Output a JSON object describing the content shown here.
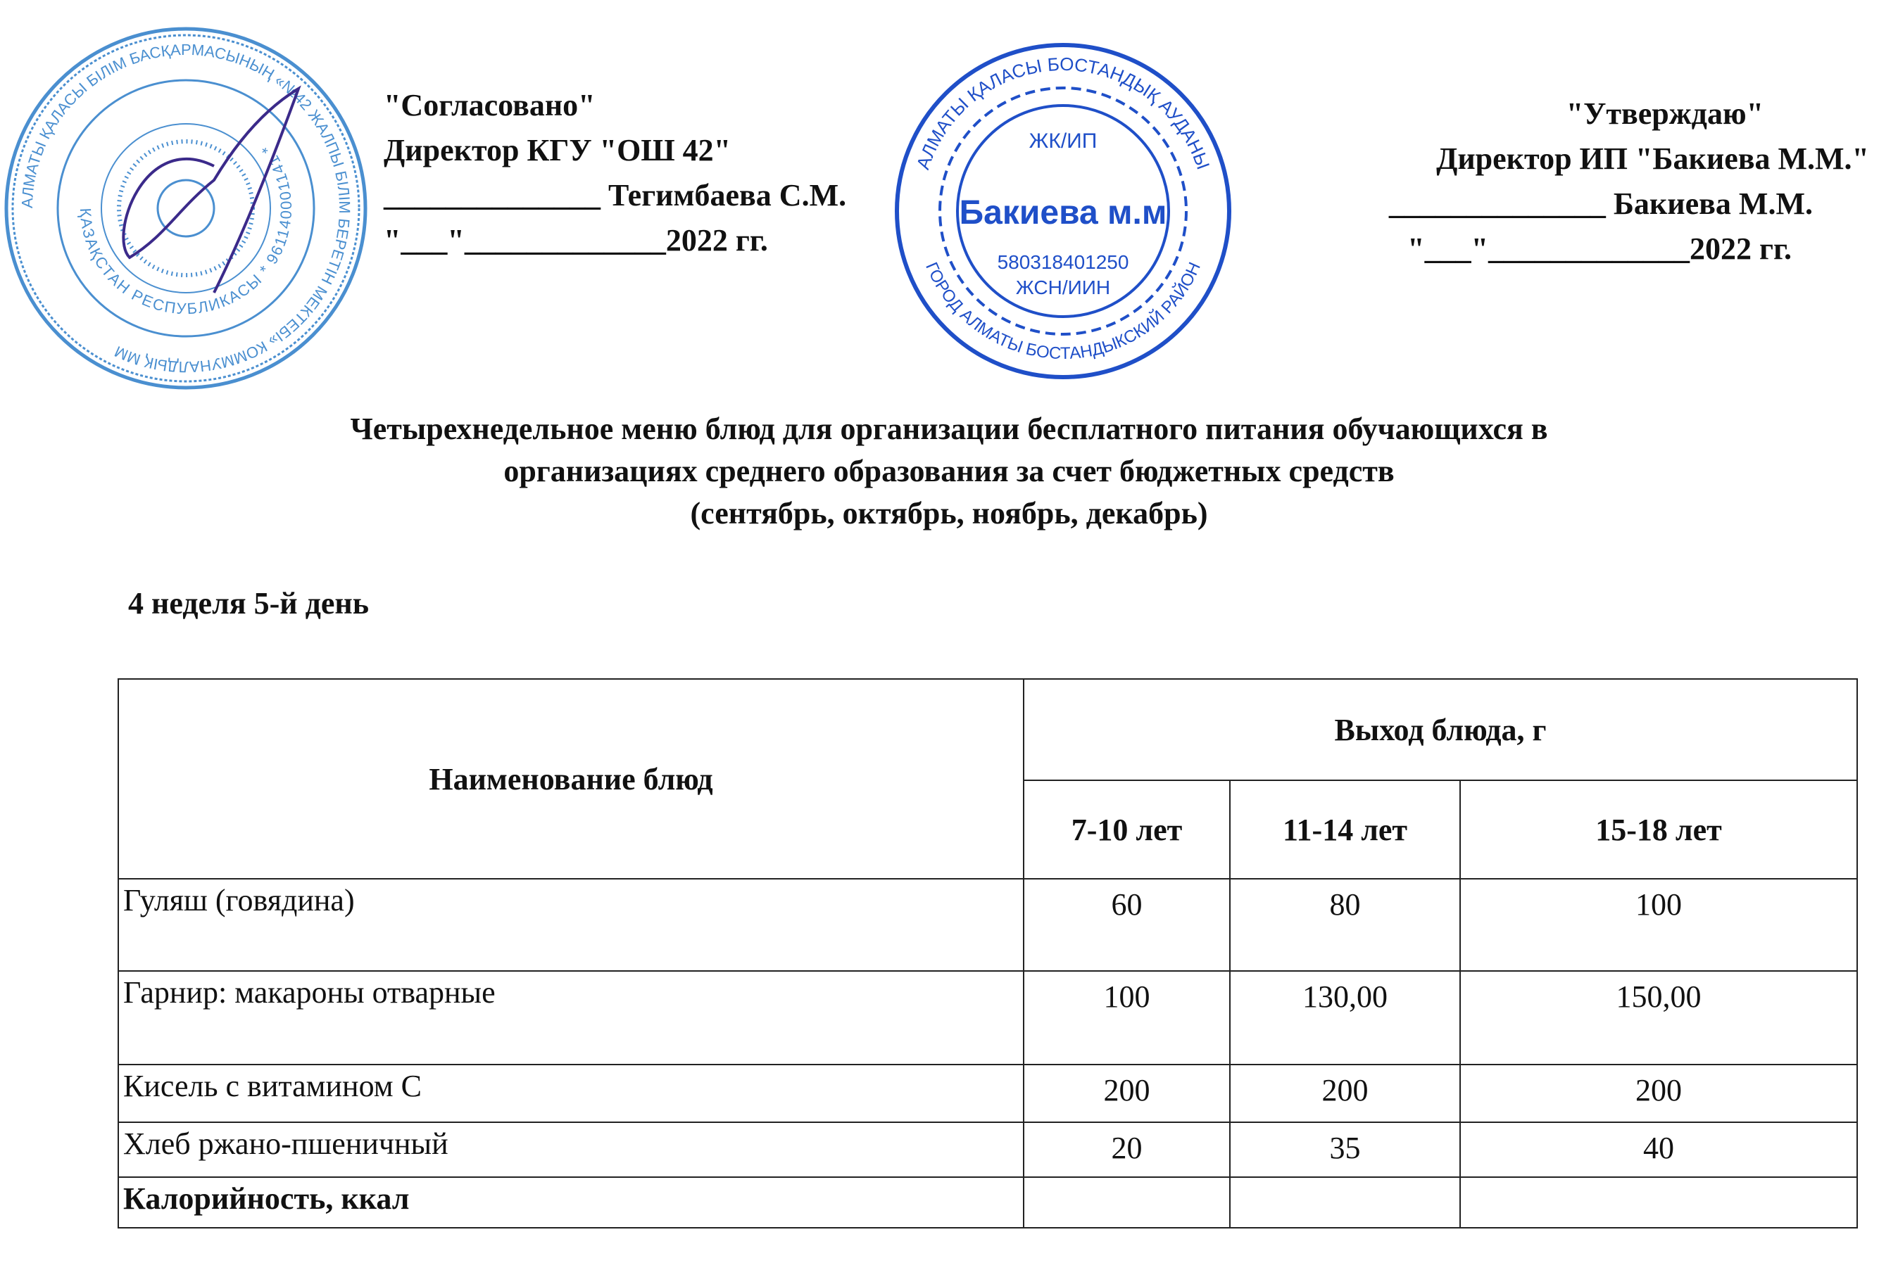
{
  "approval_left": {
    "heading": "\"Согласовано\"",
    "position": "Директор КГУ \"ОШ 42\"",
    "signature_line": "______________ Тегимбаева С.М.",
    "date_line": "\"___\"_____________2022 гг."
  },
  "approval_right": {
    "heading": "\"Утверждаю\"",
    "position": "Директор ИП \"Бакиева М.М.\"",
    "signature_line": "______________ Бакиева М.М.",
    "date_line": "\"___\"_____________2022 гг."
  },
  "stamp_left": {
    "outer_text": "АЛМАТЫ ҚАЛАСЫ БІЛІМ БАСҚАРМАСЫНЫҢ «№42 ЖАЛПЫ БІЛІМ БЕРЕТІН МЕКТЕБІ» КОММУНАЛДЫҚ ММ",
    "inner_text": "ҚАЗАҚСТАН РЕСПУБЛИКАСЫ * 961140001141 *",
    "color": "#4a8fd0"
  },
  "stamp_right": {
    "outer_top": "АЛМАТЫ ҚАЛАСЫ БОСТАНДЫҚ АУДАНЫ",
    "outer_bottom": "ГОРОД АЛМАТЫ БОСТАНДЫКСКИЙ РАЙОН",
    "line1": "ЖК/ИП",
    "name": "Бакиева м.м",
    "number": "580318401250",
    "line4": "ЖСН/ИИН",
    "color": "#1f4fc8"
  },
  "title": {
    "line1": "Четырехнедельное меню блюд для организации бесплатного питания обучающихся в",
    "line2": "организациях среднего образования за счет бюджетных средств",
    "line3": "(сентябрь, октябрь, ноябрь, декабрь)"
  },
  "day_label": "4 неделя 5-й день",
  "table": {
    "col_name": "Наименование блюд",
    "col_group": "Выход блюда, г",
    "age_groups": [
      "7-10 лет",
      "11-14 лет",
      "15-18 лет"
    ],
    "rows": [
      {
        "name": "Гуляш (говядина)",
        "values": [
          "60",
          "80",
          "100"
        ]
      },
      {
        "name": "Гарнир: макароны отварные",
        "values": [
          "100",
          "130,00",
          "150,00"
        ]
      },
      {
        "name": "Кисель с витамином С",
        "values": [
          "200",
          "200",
          "200"
        ]
      },
      {
        "name": "Хлеб ржано-пшеничный",
        "values": [
          "20",
          "35",
          "40"
        ]
      }
    ],
    "total_label": "Калорийность, ккал"
  }
}
